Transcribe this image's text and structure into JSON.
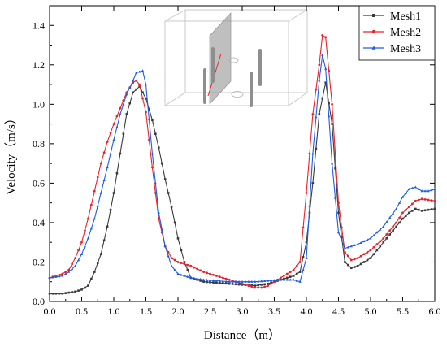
{
  "chart_data": {
    "type": "line",
    "title": "",
    "xlabel": "Distance（m）",
    "ylabel": "Velocity（m/s）",
    "xlim": [
      0.0,
      6.0
    ],
    "ylim": [
      0.0,
      1.5
    ],
    "x_ticks": [
      "0.0",
      "0.5",
      "1.0",
      "1.5",
      "2.0",
      "2.5",
      "3.0",
      "3.5",
      "4.0",
      "4.5",
      "5.0",
      "5.5",
      "6.0"
    ],
    "y_ticks": [
      "0.0",
      "0.2",
      "0.4",
      "0.6",
      "0.8",
      "1.0",
      "1.2",
      "1.4"
    ],
    "grid": false,
    "legend_position": "top-right",
    "series": [
      {
        "name": "Mesh1",
        "color": "#3a3a3a",
        "marker": "square",
        "points": [
          [
            0.0,
            0.04
          ],
          [
            0.2,
            0.04
          ],
          [
            0.4,
            0.05
          ],
          [
            0.5,
            0.06
          ],
          [
            0.6,
            0.08
          ],
          [
            0.7,
            0.15
          ],
          [
            0.8,
            0.24
          ],
          [
            0.9,
            0.38
          ],
          [
            1.0,
            0.55
          ],
          [
            1.1,
            0.75
          ],
          [
            1.2,
            0.95
          ],
          [
            1.3,
            1.06
          ],
          [
            1.4,
            1.09
          ],
          [
            1.5,
            1.03
          ],
          [
            1.6,
            0.92
          ],
          [
            1.7,
            0.78
          ],
          [
            1.8,
            0.62
          ],
          [
            1.9,
            0.48
          ],
          [
            2.0,
            0.32
          ],
          [
            2.1,
            0.2
          ],
          [
            2.2,
            0.12
          ],
          [
            2.4,
            0.1
          ],
          [
            2.6,
            0.095
          ],
          [
            2.8,
            0.09
          ],
          [
            3.0,
            0.085
          ],
          [
            3.2,
            0.08
          ],
          [
            3.4,
            0.09
          ],
          [
            3.6,
            0.11
          ],
          [
            3.8,
            0.13
          ],
          [
            3.9,
            0.15
          ],
          [
            4.0,
            0.3
          ],
          [
            4.1,
            0.6
          ],
          [
            4.2,
            0.95
          ],
          [
            4.3,
            1.11
          ],
          [
            4.4,
            0.9
          ],
          [
            4.5,
            0.45
          ],
          [
            4.6,
            0.2
          ],
          [
            4.7,
            0.17
          ],
          [
            4.8,
            0.18
          ],
          [
            5.0,
            0.22
          ],
          [
            5.2,
            0.3
          ],
          [
            5.4,
            0.38
          ],
          [
            5.5,
            0.42
          ],
          [
            5.6,
            0.45
          ],
          [
            5.7,
            0.47
          ],
          [
            5.8,
            0.46
          ],
          [
            6.0,
            0.47
          ]
        ]
      },
      {
        "name": "Mesh2",
        "color": "#e8232a",
        "marker": "circle",
        "points": [
          [
            0.0,
            0.12
          ],
          [
            0.2,
            0.14
          ],
          [
            0.3,
            0.16
          ],
          [
            0.4,
            0.22
          ],
          [
            0.5,
            0.3
          ],
          [
            0.6,
            0.42
          ],
          [
            0.7,
            0.56
          ],
          [
            0.8,
            0.7
          ],
          [
            0.9,
            0.81
          ],
          [
            1.0,
            0.9
          ],
          [
            1.1,
            0.98
          ],
          [
            1.2,
            1.06
          ],
          [
            1.3,
            1.11
          ],
          [
            1.35,
            1.12
          ],
          [
            1.4,
            1.1
          ],
          [
            1.5,
            0.96
          ],
          [
            1.6,
            0.68
          ],
          [
            1.7,
            0.42
          ],
          [
            1.8,
            0.28
          ],
          [
            1.9,
            0.22
          ],
          [
            2.0,
            0.2
          ],
          [
            2.2,
            0.18
          ],
          [
            2.4,
            0.15
          ],
          [
            2.6,
            0.13
          ],
          [
            2.8,
            0.11
          ],
          [
            3.0,
            0.09
          ],
          [
            3.2,
            0.07
          ],
          [
            3.3,
            0.07
          ],
          [
            3.4,
            0.08
          ],
          [
            3.6,
            0.12
          ],
          [
            3.8,
            0.16
          ],
          [
            3.9,
            0.2
          ],
          [
            4.0,
            0.55
          ],
          [
            4.1,
            0.95
          ],
          [
            4.2,
            1.2
          ],
          [
            4.25,
            1.35
          ],
          [
            4.3,
            1.34
          ],
          [
            4.4,
            1.0
          ],
          [
            4.5,
            0.5
          ],
          [
            4.6,
            0.25
          ],
          [
            4.7,
            0.21
          ],
          [
            4.8,
            0.22
          ],
          [
            5.0,
            0.26
          ],
          [
            5.2,
            0.32
          ],
          [
            5.4,
            0.4
          ],
          [
            5.5,
            0.45
          ],
          [
            5.6,
            0.48
          ],
          [
            5.7,
            0.51
          ],
          [
            5.8,
            0.52
          ],
          [
            6.0,
            0.51
          ]
        ]
      },
      {
        "name": "Mesh3",
        "color": "#1c5ce6",
        "marker": "triangle",
        "points": [
          [
            0.0,
            0.12
          ],
          [
            0.2,
            0.13
          ],
          [
            0.3,
            0.15
          ],
          [
            0.4,
            0.18
          ],
          [
            0.5,
            0.24
          ],
          [
            0.6,
            0.32
          ],
          [
            0.7,
            0.42
          ],
          [
            0.8,
            0.55
          ],
          [
            0.9,
            0.68
          ],
          [
            1.0,
            0.82
          ],
          [
            1.1,
            0.95
          ],
          [
            1.2,
            1.05
          ],
          [
            1.3,
            1.12
          ],
          [
            1.35,
            1.16
          ],
          [
            1.45,
            1.17
          ],
          [
            1.5,
            1.1
          ],
          [
            1.6,
            0.75
          ],
          [
            1.7,
            0.45
          ],
          [
            1.8,
            0.28
          ],
          [
            1.9,
            0.18
          ],
          [
            2.0,
            0.14
          ],
          [
            2.2,
            0.12
          ],
          [
            2.4,
            0.11
          ],
          [
            2.6,
            0.105
          ],
          [
            2.8,
            0.1
          ],
          [
            3.0,
            0.1
          ],
          [
            3.2,
            0.1
          ],
          [
            3.4,
            0.105
          ],
          [
            3.6,
            0.11
          ],
          [
            3.8,
            0.11
          ],
          [
            3.9,
            0.1
          ],
          [
            4.0,
            0.22
          ],
          [
            4.1,
            0.75
          ],
          [
            4.2,
            1.12
          ],
          [
            4.25,
            1.25
          ],
          [
            4.3,
            1.18
          ],
          [
            4.4,
            0.7
          ],
          [
            4.5,
            0.35
          ],
          [
            4.6,
            0.27
          ],
          [
            4.7,
            0.28
          ],
          [
            4.8,
            0.29
          ],
          [
            5.0,
            0.32
          ],
          [
            5.2,
            0.38
          ],
          [
            5.4,
            0.47
          ],
          [
            5.5,
            0.53
          ],
          [
            5.6,
            0.57
          ],
          [
            5.7,
            0.58
          ],
          [
            5.8,
            0.56
          ],
          [
            5.9,
            0.56
          ],
          [
            6.0,
            0.57
          ]
        ]
      }
    ],
    "legend": {
      "entries": [
        "Mesh1",
        "Mesh2",
        "Mesh3"
      ]
    },
    "inset": {
      "description_icon": "3d-box-schematic-icon",
      "plane_color": "#8a8a8a",
      "line_color": "#e8232a"
    }
  }
}
